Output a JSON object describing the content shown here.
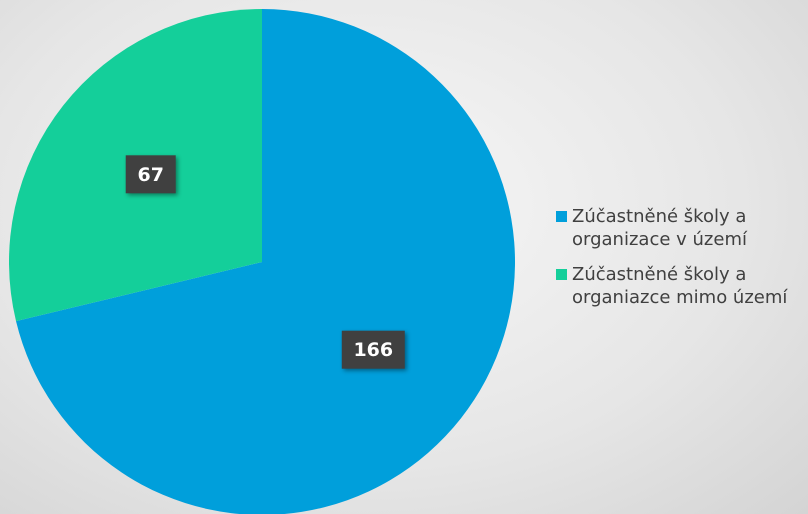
{
  "chart_data": {
    "type": "pie",
    "categories": [
      "Zúčastněné školy a organizace v území",
      "Zúčastněné školy a organiazce mimo území"
    ],
    "values": [
      166,
      67
    ],
    "colors": [
      "#009fdb",
      "#14cf9a"
    ],
    "legend": "right"
  }
}
